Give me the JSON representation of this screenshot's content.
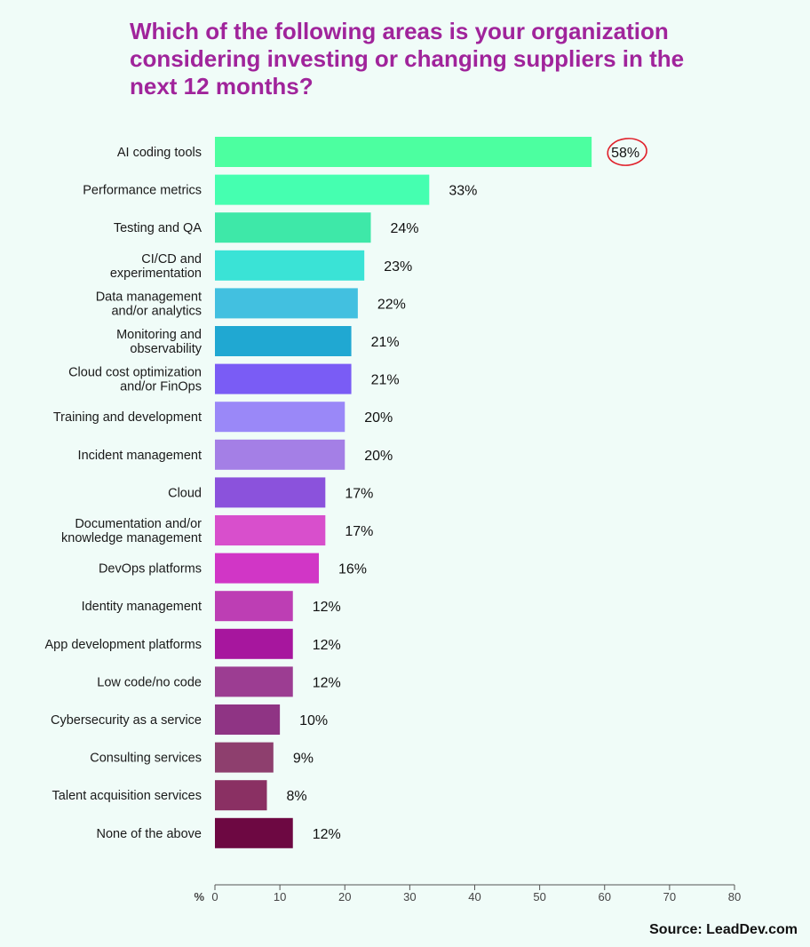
{
  "title": "Which of the following areas is your organization considering investing or changing suppliers in the next 12 months?",
  "source": "Source: LeadDev.com",
  "chart_data": {
    "type": "bar",
    "orientation": "horizontal",
    "title": "Which of the following areas is your organization considering investing or changing suppliers in the next 12 months?",
    "xlabel": "%",
    "ylabel": "",
    "xlim": [
      0,
      80
    ],
    "xticks": [
      0,
      10,
      20,
      30,
      40,
      50,
      60,
      70,
      80
    ],
    "grid": false,
    "value_suffix": "%",
    "highlighted": "AI coding tools",
    "categories": [
      "AI coding tools",
      "Performance metrics",
      "Testing and QA",
      "CI/CD and experimentation",
      "Data management and/or analytics",
      "Monitoring and observability",
      "Cloud cost optimization and/or FinOps",
      "Training and development",
      "Incident management",
      "Cloud",
      "Documentation and/or knowledge management",
      "DevOps platforms",
      "Identity management",
      "App development platforms",
      "Low code/no code",
      "Cybersecurity as a service",
      "Consulting services",
      "Talent acquisition services",
      "None of the above"
    ],
    "label_lines": [
      [
        "AI coding tools"
      ],
      [
        "Performance metrics"
      ],
      [
        "Testing and QA"
      ],
      [
        "CI/CD and",
        "experimentation"
      ],
      [
        "Data management",
        "and/or analytics"
      ],
      [
        "Monitoring and",
        "observability"
      ],
      [
        "Cloud cost optimization",
        "and/or FinOps"
      ],
      [
        "Training and development"
      ],
      [
        "Incident management"
      ],
      [
        "Cloud"
      ],
      [
        "Documentation and/or",
        "knowledge management"
      ],
      [
        "DevOps platforms"
      ],
      [
        "Identity management"
      ],
      [
        "App development platforms"
      ],
      [
        "Low code/no code"
      ],
      [
        "Cybersecurity as a service"
      ],
      [
        "Consulting services"
      ],
      [
        "Talent acquisition services"
      ],
      [
        "None of the above"
      ]
    ],
    "values": [
      58,
      33,
      24,
      23,
      22,
      21,
      21,
      20,
      20,
      17,
      17,
      16,
      12,
      12,
      12,
      10,
      9,
      8,
      12
    ],
    "colors": [
      "#4cffa0",
      "#45ffb0",
      "#3ee8a8",
      "#3ae3d6",
      "#42c0e0",
      "#20a8d2",
      "#7a5cf5",
      "#9a88f8",
      "#a47fe6",
      "#8b52dc",
      "#d84fcc",
      "#d136c6",
      "#bd3eb4",
      "#a7169e",
      "#9c3d92",
      "#8f3484",
      "#8e3f6e",
      "#8a3063",
      "#6d0842"
    ]
  }
}
